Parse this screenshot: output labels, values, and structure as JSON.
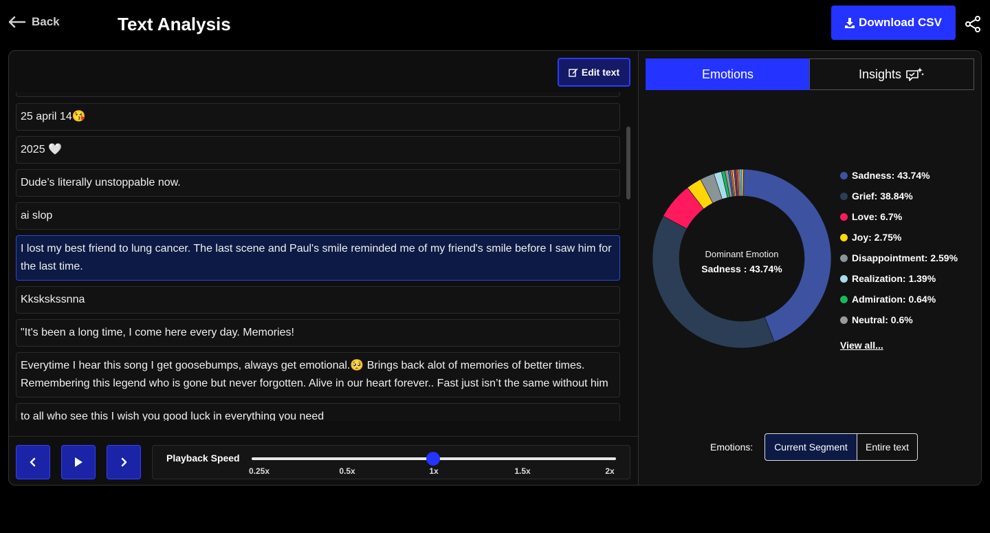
{
  "header": {
    "back_label": "Back",
    "title": "Text Analysis",
    "download_label": "Download CSV"
  },
  "editor": {
    "edit_label": "Edit text",
    "segments": [
      "25 april 14😘",
      "2025 🤍",
      "Dude’s literally unstoppable now.",
      "ai slop",
      "I lost my best friend to lung cancer. The last scene and Paul's smile reminded me of my friend's smile before I saw him for the last time.",
      "Kkskskssnna",
      "\"It's been a long time, I come here every day. Memories!",
      "Everytime I hear this song I get goosebumps, always get emotional.🥺 Brings back alot of memories of better times. Remembering this legend who is gone but never forgotten. Alive in our heart forever.. Fast just isn’t the same without him",
      "to all who see this I wish you good luck in everything you need"
    ],
    "active_segment_index": 4
  },
  "playback": {
    "speed_label": "Playback Speed",
    "speed_options": [
      "0.25x",
      "0.5x",
      "1x",
      "1.5x",
      "2x"
    ],
    "current_speed": "1x"
  },
  "analysis": {
    "tabs": [
      "Emotions",
      "Insights"
    ],
    "active_tab": "Emotions",
    "dominant_label": "Dominant Emotion",
    "dominant_value": "Sadness : 43.74%",
    "view_all_label": "View all...",
    "scope_label": "Emotions:",
    "scope_options": [
      "Current Segment",
      "Entire text"
    ],
    "active_scope": "Current Segment"
  },
  "chart_data": {
    "type": "pie",
    "categories": [
      "Sadness",
      "Grief",
      "Love",
      "Joy",
      "Disappointment",
      "Realization",
      "Admiration",
      "Neutral"
    ],
    "values": [
      43.74,
      38.84,
      6.7,
      2.75,
      2.59,
      1.39,
      0.64,
      0.6
    ],
    "legend_labels": [
      "Sadness: 43.74%",
      "Grief: 38.84%",
      "Love: 6.7%",
      "Joy: 2.75%",
      "Disappointment: 2.59%",
      "Realization: 1.39%",
      "Admiration: 0.64%",
      "Neutral: 0.6%"
    ],
    "colors": [
      "#3d52a0",
      "#2c3e55",
      "#ff1a5e",
      "#ffd60a",
      "#8a9598",
      "#a8dcea",
      "#18b95a",
      "#9a9a9a"
    ],
    "extra_slice_colors": [
      "#1f6feb",
      "#e46c24",
      "#f2b86a",
      "#5b3d8c",
      "#c94f4f",
      "#d3a063",
      "#6dd5fa",
      "#e7b24d"
    ],
    "legend_position": "right"
  }
}
